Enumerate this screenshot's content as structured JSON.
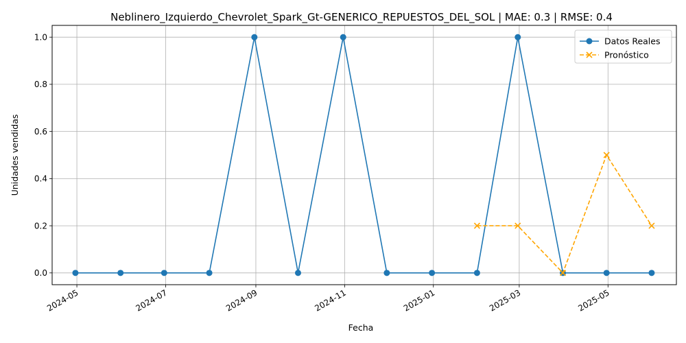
{
  "chart_data": {
    "type": "line",
    "title": "Neblinero_Izquierdo_Chevrolet_Spark_Gt-GENERICO_REPUESTOS_DEL_SOL | MAE: 0.3 | RMSE: 0.4",
    "xlabel": "Fecha",
    "ylabel": "Unidades vendidas",
    "ylim": [
      -0.05,
      1.05
    ],
    "xlim": [
      "2024-04-14",
      "2025-06-17"
    ],
    "grid": true,
    "legend_position": "top-right",
    "x_ticks": [
      "2024-05",
      "2024-07",
      "2024-09",
      "2024-11",
      "2025-01",
      "2025-03",
      "2025-05"
    ],
    "y_ticks": [
      "0.0",
      "0.2",
      "0.4",
      "0.6",
      "0.8",
      "1.0"
    ],
    "series": [
      {
        "name": "Datos Reales",
        "color": "#1f77b4",
        "style": "solid",
        "marker": "circle",
        "x": [
          "2024-04-30",
          "2024-05-31",
          "2024-06-30",
          "2024-07-31",
          "2024-08-31",
          "2024-09-30",
          "2024-10-31",
          "2024-11-30",
          "2024-12-31",
          "2025-01-31",
          "2025-02-28",
          "2025-03-31",
          "2025-04-30",
          "2025-05-31"
        ],
        "values": [
          0,
          0,
          0,
          0,
          1,
          0,
          1,
          0,
          0,
          0,
          1,
          0,
          0,
          0
        ]
      },
      {
        "name": "Pronóstico",
        "color": "#ffa500",
        "style": "dashed",
        "marker": "x",
        "x": [
          "2025-01-31",
          "2025-02-28",
          "2025-03-31",
          "2025-04-30",
          "2025-05-31"
        ],
        "values": [
          0.2,
          0.2,
          0,
          0.5,
          0.2
        ]
      }
    ]
  }
}
